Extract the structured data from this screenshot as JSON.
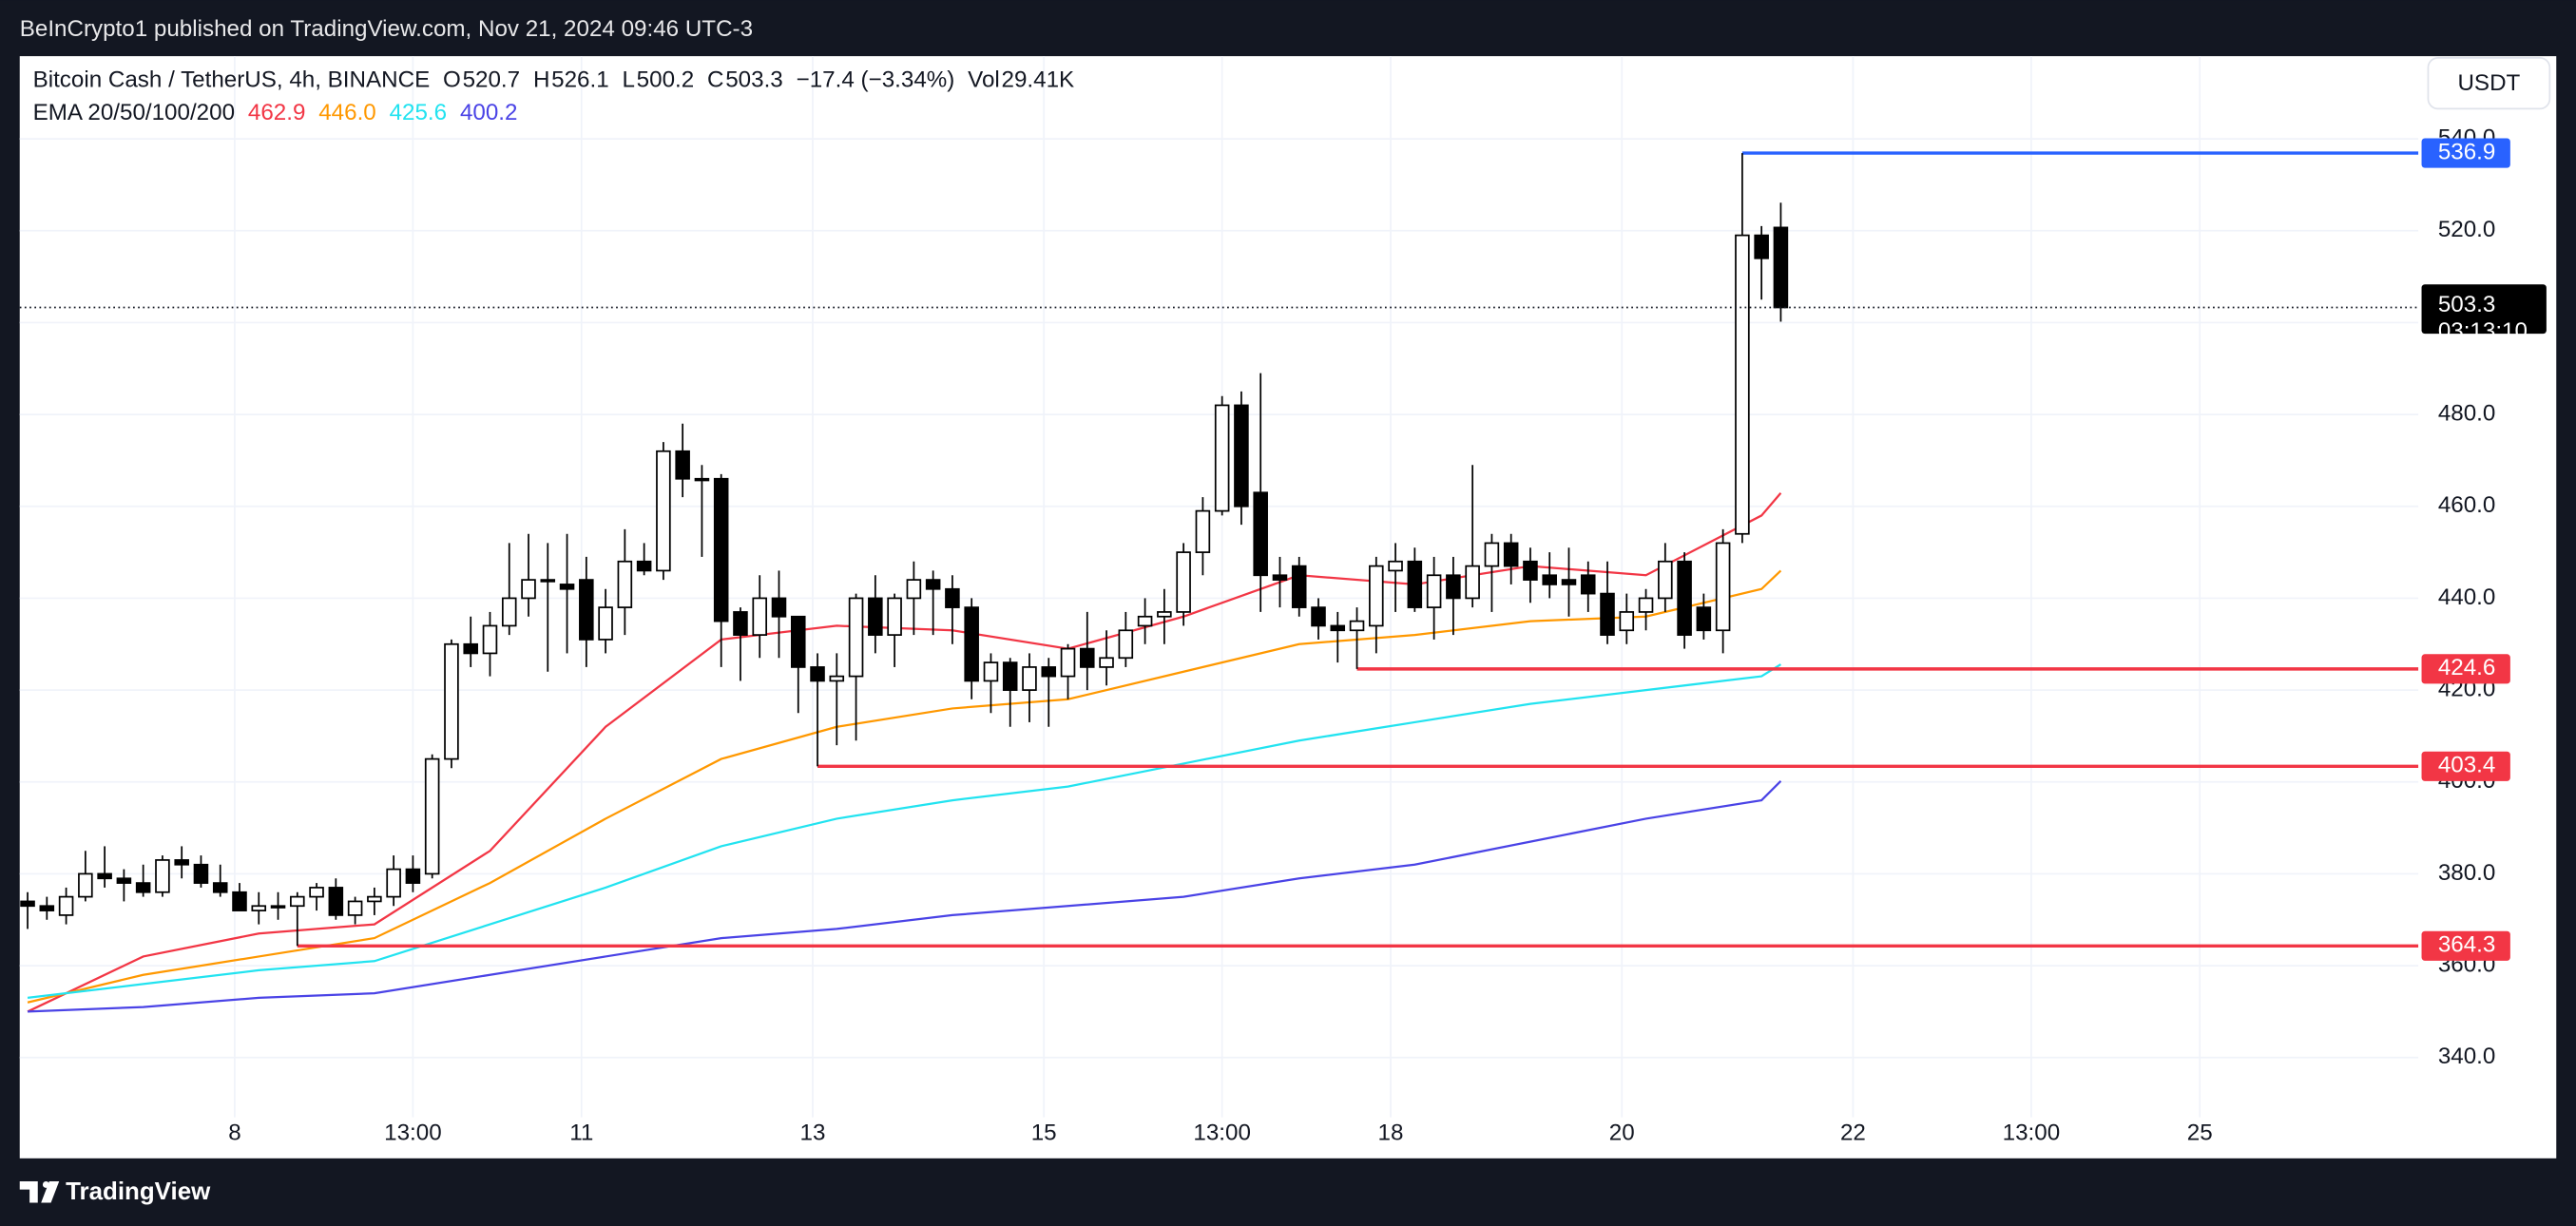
{
  "header": {
    "text": "BeInCrypto1 published on TradingView.com, Nov 21, 2024 09:46 UTC-3"
  },
  "footer": {
    "logo": "TradingView"
  },
  "chart_data": {
    "type": "candlestick",
    "title": "Bitcoin Cash / TetherUS, 4h, BINANCE",
    "ohlc_labels": [
      "O",
      "H",
      "L",
      "C"
    ],
    "change": "−17.4 (−3.34%)",
    "volume_label": "Vol",
    "volume": "29.41K",
    "indicator_title": "EMA 20/50/100/200",
    "currency": "USDT",
    "countdown": "03:13:10",
    "x": [
      6.2083,
      6.375,
      6.5417,
      6.7083,
      6.875,
      7.0417,
      7.2083,
      7.375,
      7.5417,
      7.7083,
      7.875,
      8.0417,
      8.2083,
      8.375,
      8.5417,
      8.7083,
      8.875,
      9.0417,
      9.2083,
      9.375,
      9.5417,
      9.7083,
      9.875,
      10.0417,
      10.2083,
      10.375,
      10.5417,
      10.7083,
      10.875,
      11.0417,
      11.2083,
      11.375,
      11.5417,
      11.7083,
      11.875,
      12.0417,
      12.2083,
      12.375,
      12.5417,
      12.7083,
      12.875,
      13.0417,
      13.2083,
      13.375,
      13.5417,
      13.7083,
      13.875,
      14.0417,
      14.2083,
      14.375,
      14.5417,
      14.7083,
      14.875,
      15.0417,
      15.2083,
      15.375,
      15.5417,
      15.7083,
      15.875,
      16.0417,
      16.2083,
      16.375,
      16.5417,
      16.7083,
      16.875,
      17.0417,
      17.2083,
      17.375,
      17.5417,
      17.7083,
      17.875,
      18.0417,
      18.2083,
      18.375,
      18.5417,
      18.7083,
      18.875,
      19.0417,
      19.2083,
      19.375,
      19.5417,
      19.7083,
      19.875,
      20.0417,
      20.2083,
      20.375,
      20.5417,
      20.7083,
      20.875,
      21.0417,
      21.2083,
      21.375
    ],
    "open": [
      374,
      373,
      371,
      375,
      380,
      379,
      378,
      376,
      383,
      382,
      378,
      376,
      372,
      373,
      373,
      375,
      377,
      371,
      374,
      375,
      381,
      380,
      405,
      430,
      428,
      434,
      440,
      444,
      443,
      444,
      431,
      438,
      448,
      446,
      472,
      466,
      466,
      437,
      432,
      440,
      436,
      425,
      422,
      423,
      440,
      432,
      440,
      444,
      442,
      438,
      422,
      426,
      420,
      425,
      423,
      429,
      425,
      427,
      434,
      436,
      437,
      450,
      459,
      482,
      463,
      445,
      447,
      438,
      434,
      433,
      434,
      446,
      448,
      438,
      445,
      440,
      447,
      452,
      448,
      445,
      444,
      445,
      441,
      433,
      437,
      440,
      448,
      438,
      433,
      454,
      519,
      520.7
    ],
    "high": [
      376,
      375,
      377,
      385,
      386,
      381,
      382,
      384,
      386,
      384,
      382,
      378,
      376,
      376,
      376,
      378,
      379,
      375,
      377,
      384,
      384,
      406,
      431,
      436,
      437,
      452,
      454,
      452,
      454,
      449,
      442,
      455,
      452,
      474,
      478,
      469,
      467,
      438,
      445,
      446,
      436,
      428,
      428,
      441,
      445,
      441,
      448,
      446,
      445,
      440,
      428,
      427,
      428,
      427,
      430,
      437,
      433,
      437,
      440,
      442,
      452,
      462,
      484,
      485,
      489,
      449,
      449,
      440,
      437,
      438,
      449,
      452,
      451,
      449,
      449,
      469,
      454,
      454,
      451,
      450,
      451,
      448,
      448,
      441,
      442,
      452,
      450,
      441,
      455,
      536.9,
      521,
      526.1
    ],
    "low": [
      368,
      370,
      369,
      374,
      377,
      374,
      375,
      375,
      379,
      377,
      375,
      372,
      369,
      370,
      364.3,
      372,
      370,
      369,
      371,
      373,
      376,
      379,
      403,
      425,
      423,
      432,
      436,
      424,
      428,
      425,
      428,
      432,
      445,
      444,
      462,
      449,
      425,
      422,
      427,
      427,
      415,
      403.4,
      408,
      409,
      428,
      425,
      432,
      432,
      430,
      418,
      415,
      412,
      413,
      412,
      418,
      420,
      421,
      425,
      430,
      430,
      434,
      445,
      458,
      456,
      437,
      438,
      436,
      431,
      426,
      424.6,
      428,
      437,
      437,
      431,
      432,
      438,
      437,
      443,
      439,
      440,
      436,
      437,
      430,
      430,
      433,
      437,
      429,
      431,
      428,
      452,
      505,
      500.2
    ],
    "close": [
      373,
      372,
      375,
      380,
      379,
      378,
      376,
      383,
      382,
      378,
      376,
      372,
      373,
      373,
      375,
      377,
      371,
      374,
      375,
      381,
      378,
      405,
      430,
      428,
      434,
      440,
      444,
      444,
      442,
      431,
      438,
      448,
      446,
      472,
      466,
      466,
      435,
      432,
      440,
      436,
      425,
      422,
      423,
      440,
      432,
      440,
      444,
      442,
      438,
      422,
      426,
      420,
      425,
      423,
      429,
      425,
      427,
      433,
      436,
      437,
      450,
      459,
      482,
      460,
      445,
      444,
      438,
      434,
      433,
      435,
      447,
      448,
      438,
      445,
      440,
      447,
      452,
      447,
      444,
      443,
      443,
      441,
      432,
      437,
      440,
      448,
      432,
      433,
      452,
      519,
      514,
      503.3
    ],
    "up_color": "#ffffff",
    "down_color": "#000000",
    "border_color": "#000000",
    "series": [
      {
        "color": "#f23645",
        "x": [
          6.2083,
          7.2083,
          8.2083,
          9.2083,
          10.2083,
          11.2083,
          12.2083,
          13.2083,
          14.2083,
          15.2083,
          16.2083,
          17.2083,
          18.2083,
          19.2083,
          20.2083,
          21.2083,
          21.375
        ],
        "values": [
          350,
          362,
          367,
          369,
          385,
          412,
          431,
          434,
          433,
          429,
          436,
          445,
          443,
          447,
          445,
          458,
          462.9
        ],
        "value_labels": [
          null,
          null,
          null,
          null,
          null,
          null,
          null,
          null,
          null,
          null,
          null,
          null,
          null,
          null,
          null,
          null,
          "462.9"
        ]
      },
      {
        "color": "#ff9800",
        "x": [
          6.2083,
          7.2083,
          8.2083,
          9.2083,
          10.2083,
          11.2083,
          12.2083,
          13.2083,
          14.2083,
          15.2083,
          16.2083,
          17.2083,
          18.2083,
          19.2083,
          20.2083,
          21.2083,
          21.375
        ],
        "values": [
          352,
          358,
          362,
          366,
          378,
          392,
          405,
          412,
          416,
          418,
          424,
          430,
          432,
          435,
          436,
          442,
          446
        ],
        "value_labels": [
          null,
          null,
          null,
          null,
          null,
          null,
          null,
          null,
          null,
          null,
          null,
          null,
          null,
          null,
          null,
          null,
          "446.0"
        ]
      },
      {
        "color": "#22e3f0",
        "x": [
          6.2083,
          7.2083,
          8.2083,
          9.2083,
          10.2083,
          11.2083,
          12.2083,
          13.2083,
          14.2083,
          15.2083,
          16.2083,
          17.2083,
          18.2083,
          19.2083,
          20.2083,
          21.2083,
          21.375
        ],
        "values": [
          353,
          356,
          359,
          361,
          369,
          377,
          386,
          392,
          396,
          399,
          404,
          409,
          413,
          417,
          420,
          423,
          425.6
        ],
        "value_labels": [
          null,
          null,
          null,
          null,
          null,
          null,
          null,
          null,
          null,
          null,
          null,
          null,
          null,
          null,
          null,
          null,
          "425.6"
        ]
      },
      {
        "color": "#4a43e6",
        "x": [
          6.2083,
          7.2083,
          8.2083,
          9.2083,
          10.2083,
          11.2083,
          12.2083,
          13.2083,
          14.2083,
          15.2083,
          16.2083,
          17.2083,
          18.2083,
          19.2083,
          20.2083,
          21.2083,
          21.375
        ],
        "values": [
          350,
          351,
          353,
          354,
          358,
          362,
          366,
          368,
          371,
          373,
          375,
          379,
          382,
          387,
          392,
          396,
          400.2
        ],
        "value_labels": [
          null,
          null,
          null,
          null,
          null,
          null,
          null,
          null,
          null,
          null,
          null,
          null,
          null,
          null,
          null,
          null,
          "400.2"
        ]
      }
    ],
    "levels": [
      {
        "value": 536.9,
        "x": 21.0417,
        "color": "#2962ff"
      },
      {
        "value": 424.6,
        "x": 17.7083,
        "color": "#f23645"
      },
      {
        "value": 403.4,
        "x": 13.0417,
        "color": "#f23645"
      },
      {
        "value": 364.3,
        "x": 8.5417,
        "color": "#f23645"
      }
    ],
    "xlim": [
      6.14,
      26.89
    ],
    "ylim": [
      327,
      558
    ],
    "xticks": [
      8,
      {
        "value": 9.5417,
        "label": "13:00"
      },
      11,
      13,
      15,
      {
        "value": 16.5417,
        "label": "13:00"
      },
      18,
      20,
      22,
      {
        "value": 23.5417,
        "label": "13:00"
      },
      25
    ],
    "yticks": [
      {
        "value": 340,
        "label": "340.0"
      },
      {
        "value": 360,
        "label": "360.0"
      },
      {
        "value": 380,
        "label": "380.0"
      },
      {
        "value": 400,
        "label": "400.0"
      },
      {
        "value": 420,
        "label": "420.0"
      },
      {
        "value": 440,
        "label": "440.0"
      },
      {
        "value": 460,
        "label": "460.0"
      },
      {
        "value": 480,
        "label": "480.0"
      },
      {
        "value": 500,
        "label": "500.0"
      },
      {
        "value": 520,
        "label": "520.0"
      },
      {
        "value": 540,
        "label": "540.0"
      }
    ],
    "grid": true
  }
}
